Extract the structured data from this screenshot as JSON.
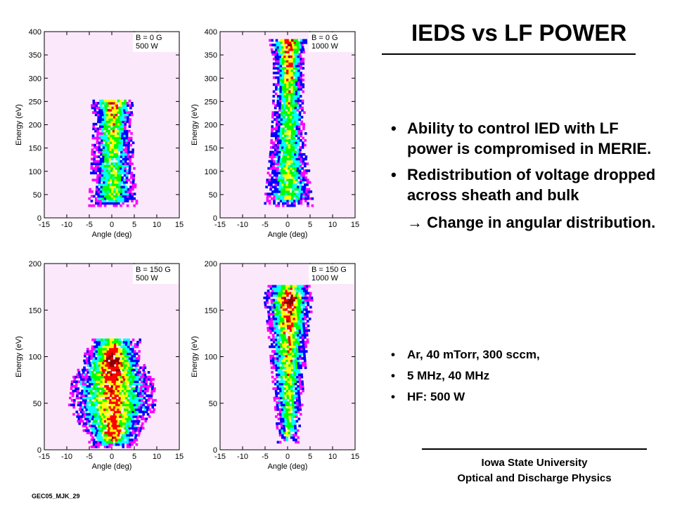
{
  "title": "IEDS vs LF POWER",
  "bullets": [
    "Ability to control IED with LF power is compromised in MERIE.",
    "Redistribution of voltage dropped across sheath and bulk"
  ],
  "arrow_text": "→ Change in angular distribution.",
  "conditions": [
    "Ar, 40 mTorr, 300 sccm,",
    "5 MHz, 40 MHz",
    "HF: 500 W"
  ],
  "footer": {
    "line1": "Iowa State University",
    "line2": "Optical and Discharge Physics"
  },
  "code": "GEC05_MJK_29",
  "colors": {
    "background_fill": "#fbe9fb",
    "distribution_colormap": [
      "#ff00ff",
      "#0000ff",
      "#00ffff",
      "#00ff00",
      "#ffff00",
      "#ff0000",
      "#8b0000"
    ]
  },
  "chart_data": [
    {
      "type": "heatmap",
      "xlabel": "Angle (deg)",
      "ylabel": "Energy (eV)",
      "xlim": [
        -15,
        15
      ],
      "ylim": [
        0,
        400
      ],
      "xticks": [
        -15,
        -10,
        -5,
        0,
        5,
        10,
        15
      ],
      "yticks": [
        0,
        50,
        100,
        150,
        200,
        250,
        300,
        350,
        400
      ],
      "legend": [
        "B = 0 G",
        "500 W"
      ],
      "distribution": [
        {
          "e": 40,
          "w": 3.5,
          "c": 0.55
        },
        {
          "e": 100,
          "w": 3.2,
          "c": 0.5
        },
        {
          "e": 160,
          "w": 3.0,
          "c": 0.55
        },
        {
          "e": 215,
          "w": 2.8,
          "c": 0.65
        },
        {
          "e": 245,
          "w": 3.2,
          "c": 0.75
        }
      ]
    },
    {
      "type": "heatmap",
      "xlabel": "Angle (deg)",
      "ylabel": "Energy (eV)",
      "xlim": [
        -15,
        15
      ],
      "ylim": [
        0,
        400
      ],
      "xticks": [
        -15,
        -10,
        -5,
        0,
        5,
        10,
        15
      ],
      "yticks": [
        0,
        50,
        100,
        150,
        200,
        250,
        300,
        350,
        400
      ],
      "legend": [
        "B = 0 G",
        "1000 W"
      ],
      "distribution": [
        {
          "e": 40,
          "w": 3.5,
          "c": 0.55
        },
        {
          "e": 150,
          "w": 2.6,
          "c": 0.5
        },
        {
          "e": 270,
          "w": 2.2,
          "c": 0.6
        },
        {
          "e": 340,
          "w": 2.2,
          "c": 0.75
        },
        {
          "e": 375,
          "w": 2.8,
          "c": 0.85
        }
      ]
    },
    {
      "type": "heatmap",
      "xlabel": "Angle (deg)",
      "ylabel": "Energy (eV)",
      "xlim": [
        -15,
        15
      ],
      "ylim": [
        0,
        200
      ],
      "xticks": [
        -15,
        -10,
        -5,
        0,
        5,
        10,
        15
      ],
      "yticks": [
        0,
        50,
        100,
        150,
        200
      ],
      "legend": [
        "B = 150 G",
        "500 W"
      ],
      "distribution": [
        {
          "e": 10,
          "w": 3.5,
          "c": 0.75
        },
        {
          "e": 45,
          "w": 6.5,
          "c": 0.7
        },
        {
          "e": 75,
          "w": 6.0,
          "c": 0.75
        },
        {
          "e": 95,
          "w": 4.2,
          "c": 0.95
        },
        {
          "e": 115,
          "w": 4.0,
          "c": 0.55
        }
      ]
    },
    {
      "type": "heatmap",
      "xlabel": "Angle (deg)",
      "ylabel": "Energy (eV)",
      "xlim": [
        -15,
        15
      ],
      "ylim": [
        0,
        200
      ],
      "xticks": [
        -15,
        -10,
        -5,
        0,
        5,
        10,
        15
      ],
      "yticks": [
        0,
        50,
        100,
        150,
        200
      ],
      "legend": [
        "B = 150 G",
        "1000 W"
      ],
      "distribution": [
        {
          "e": 15,
          "w": 1.6,
          "c": 0.5
        },
        {
          "e": 60,
          "w": 2.2,
          "c": 0.55
        },
        {
          "e": 110,
          "w": 2.8,
          "c": 0.65
        },
        {
          "e": 145,
          "w": 3.3,
          "c": 0.75
        },
        {
          "e": 162,
          "w": 3.6,
          "c": 0.95
        },
        {
          "e": 172,
          "w": 3.3,
          "c": 0.6
        }
      ]
    }
  ]
}
